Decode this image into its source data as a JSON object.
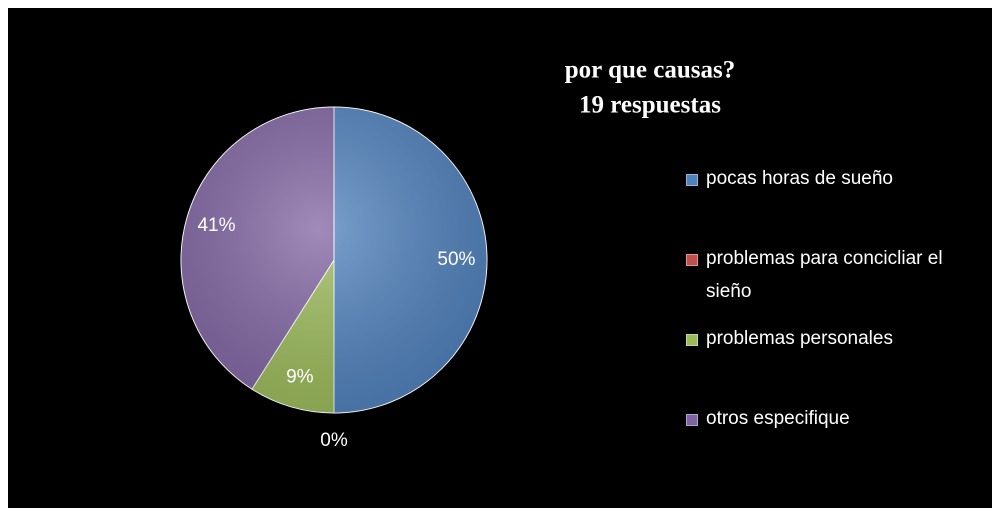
{
  "chart_data": {
    "type": "pie",
    "title": "por que causas?",
    "subtitle": "19 respuestas",
    "categories": [
      "pocas horas de sueño",
      "problemas para concicliar el sieño",
      "problemas personales",
      "otros especifique"
    ],
    "values": [
      50,
      0,
      9,
      41
    ],
    "value_labels": [
      "50%",
      "0%",
      "9%",
      "41%"
    ],
    "colors": [
      "#4f81bd",
      "#c0504d",
      "#9bbb59",
      "#8064a2"
    ],
    "legend": "right"
  }
}
